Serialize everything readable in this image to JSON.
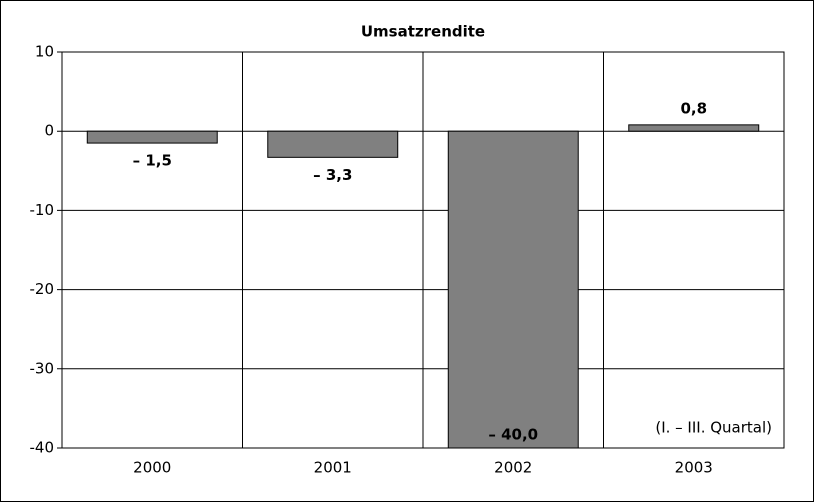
{
  "chart_data": {
    "type": "bar",
    "title": "Umsatzrendite",
    "categories": [
      "2000",
      "2001",
      "2002",
      "2003"
    ],
    "values": [
      -1.5,
      -3.3,
      -40.0,
      0.8
    ],
    "value_labels": [
      "– 1,5",
      "– 3,3",
      "– 40,0",
      "0,8"
    ],
    "color": "#808080",
    "ylim": [
      -40,
      10
    ],
    "yticks": [
      -40,
      -30,
      -20,
      -10,
      0,
      10
    ],
    "grid": true,
    "annotation": "(I. – III. Quartal)"
  }
}
